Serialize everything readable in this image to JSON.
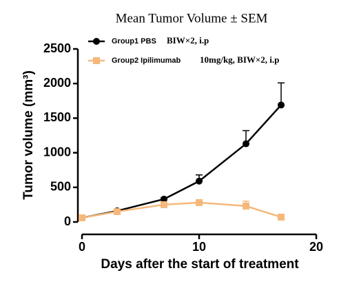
{
  "chart_data": {
    "type": "line",
    "title": "Mean Tumor Volume ± SEM",
    "xlabel": "Days after the start of treatment",
    "ylabel": "Tumor volume (mm³)",
    "x": [
      0,
      3,
      7,
      10,
      14,
      17
    ],
    "series": [
      {
        "name": "Group1 PBS",
        "annotation": "BIW×2, i.p",
        "color": "#000000",
        "marker": "circle",
        "values": [
          60,
          160,
          330,
          590,
          1130,
          1690
        ],
        "errors": [
          0,
          10,
          20,
          90,
          190,
          320
        ]
      },
      {
        "name": "Group2 Ipilimumab",
        "annotation": "10mg/kg, BIW×2, i.p",
        "color": "#f5b87a",
        "marker": "square",
        "values": [
          60,
          150,
          250,
          280,
          230,
          70
        ],
        "errors": [
          0,
          10,
          20,
          20,
          70,
          10
        ]
      }
    ],
    "xlim": [
      0,
      20
    ],
    "xticks": [
      0,
      10,
      20
    ],
    "ylim": [
      0,
      2500
    ],
    "yticks": [
      0,
      500,
      1000,
      1500,
      2000,
      2500
    ]
  }
}
